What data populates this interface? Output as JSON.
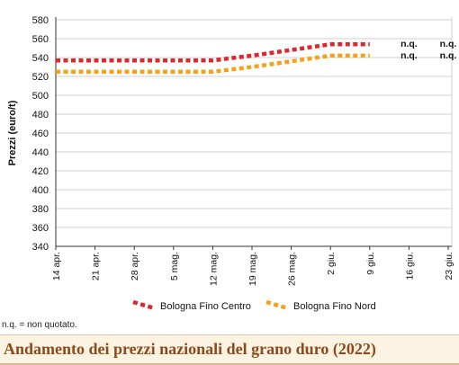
{
  "chart_data": {
    "type": "line",
    "ylabel": "Prezzi (euro/t)",
    "xlabel": "",
    "ylim": [
      340,
      580
    ],
    "yticks": [
      340,
      360,
      380,
      400,
      420,
      440,
      460,
      480,
      500,
      520,
      540,
      560,
      580
    ],
    "categories": [
      "14 apr.",
      "21 apr.",
      "28 apr.",
      "5 mag.",
      "12 mag.",
      "19 mag.",
      "26 mag.",
      "2 giu.",
      "9 giu.",
      "16 giu.",
      "23 giu."
    ],
    "grid": "horizontal",
    "legend_position": "bottom",
    "series": [
      {
        "name": "Bologna Fino Centro",
        "color": "#e0252d",
        "values": [
          537,
          537,
          537,
          537,
          537,
          542,
          548,
          554,
          554,
          null,
          null
        ]
      },
      {
        "name": "Bologna Fino Nord",
        "color": "#f5a21b",
        "values": [
          525,
          525,
          525,
          525,
          525,
          530,
          536,
          542,
          542,
          null,
          null
        ]
      }
    ],
    "annotations": [
      {
        "category": "16 giu.",
        "series": "Bologna Fino Centro",
        "text": "n.q."
      },
      {
        "category": "23 giu.",
        "series": "Bologna Fino Centro",
        "text": "n.q."
      },
      {
        "category": "16 giu.",
        "series": "Bologna Fino Nord",
        "text": "n.q."
      },
      {
        "category": "23 giu.",
        "series": "Bologna Fino Nord",
        "text": "n.q."
      }
    ]
  },
  "note": "n.q. = non quotato.",
  "footer": {
    "title": "Andamento dei prezzi nazionali del grano duro (2022)"
  }
}
